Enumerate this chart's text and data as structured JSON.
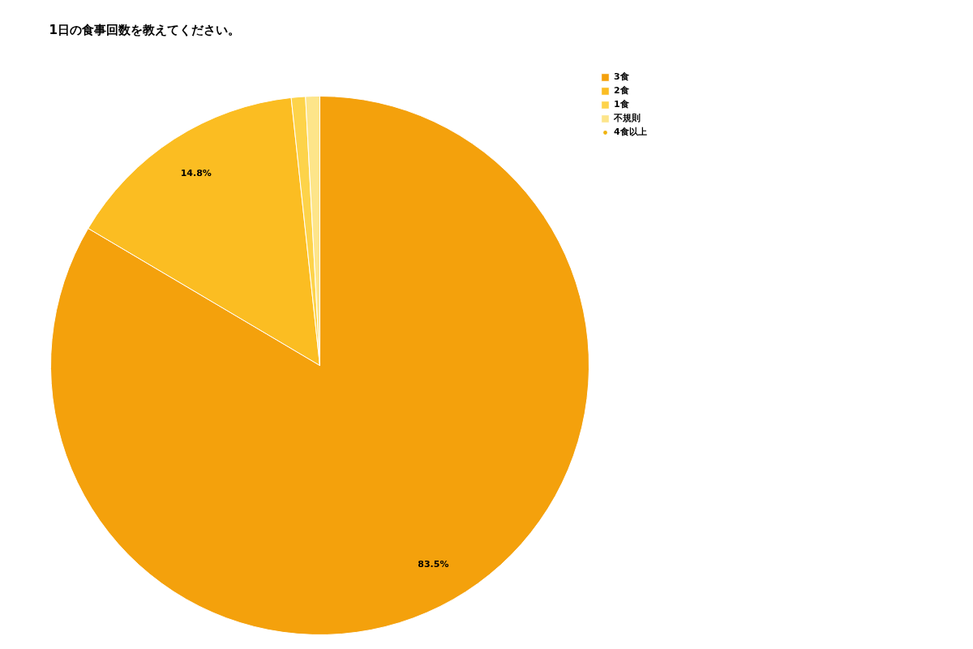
{
  "chart_data": {
    "type": "pie",
    "title": "1日の食事回数を教えてください。",
    "categories": [
      "3食",
      "2食",
      "1食",
      "不規則",
      "4食以上"
    ],
    "values": [
      83.5,
      14.8,
      0.85,
      0.85,
      0
    ],
    "colors": [
      "#f4a10c",
      "#fbbd22",
      "#fdd34a",
      "#fde58a",
      "#f0b30e"
    ],
    "value_labels": [
      "83.5%",
      "14.8%",
      null,
      null,
      null
    ],
    "legend": "top right"
  }
}
